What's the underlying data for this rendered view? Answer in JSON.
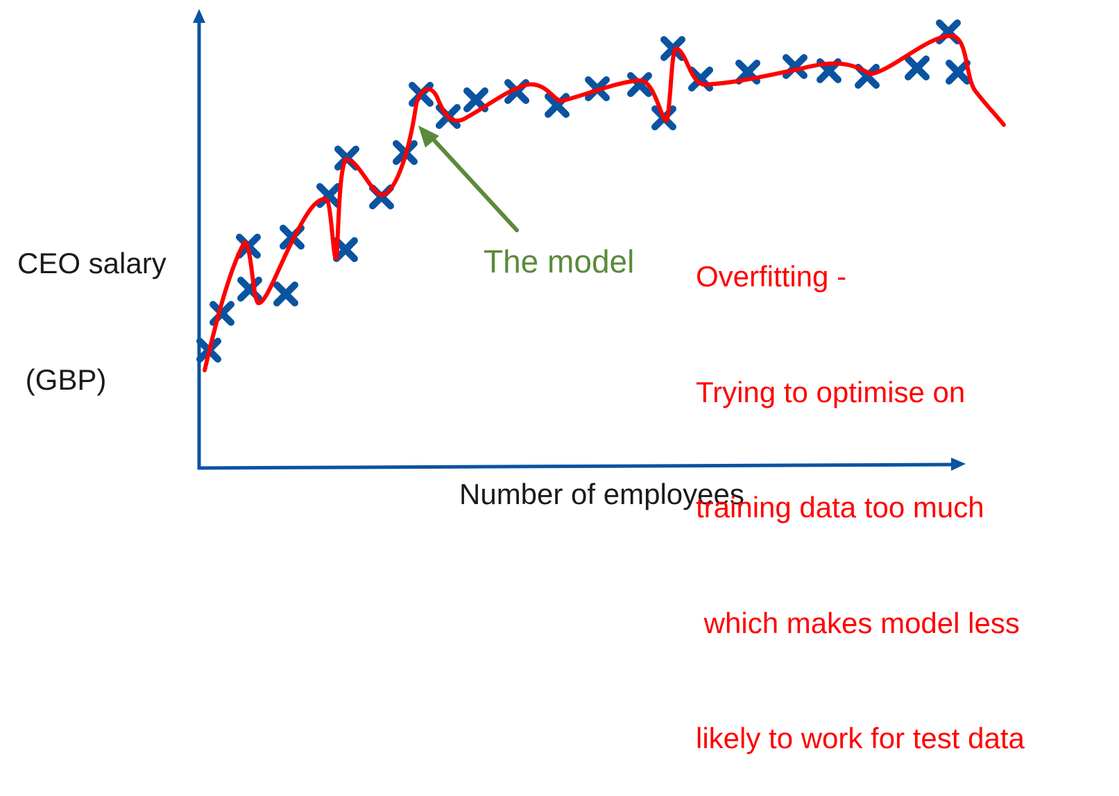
{
  "axes": {
    "y_label_lines": [
      "CEO salary",
      " (GBP)"
    ],
    "x_label": "Number of employees",
    "axis_color": "#0a53a0"
  },
  "annotation": {
    "model_label": "The model",
    "arrow_color": "#5b8a3a",
    "note_lines": [
      "Overfitting -",
      "Trying to optimise on",
      "training data too much",
      " which makes model less",
      "likely to work for test data"
    ],
    "note_color": "#ff0000"
  },
  "chart_data": {
    "type": "scatter",
    "title": "",
    "xlabel": "Number of employees",
    "ylabel": "CEO salary (GBP)",
    "marker": "x",
    "marker_color": "#0a53a0",
    "fit_curve_color": "#ff0000",
    "fit_curve": "overfitted curve passing through every data point",
    "x_ticks": "none",
    "y_ticks": "none",
    "grid": false
  }
}
